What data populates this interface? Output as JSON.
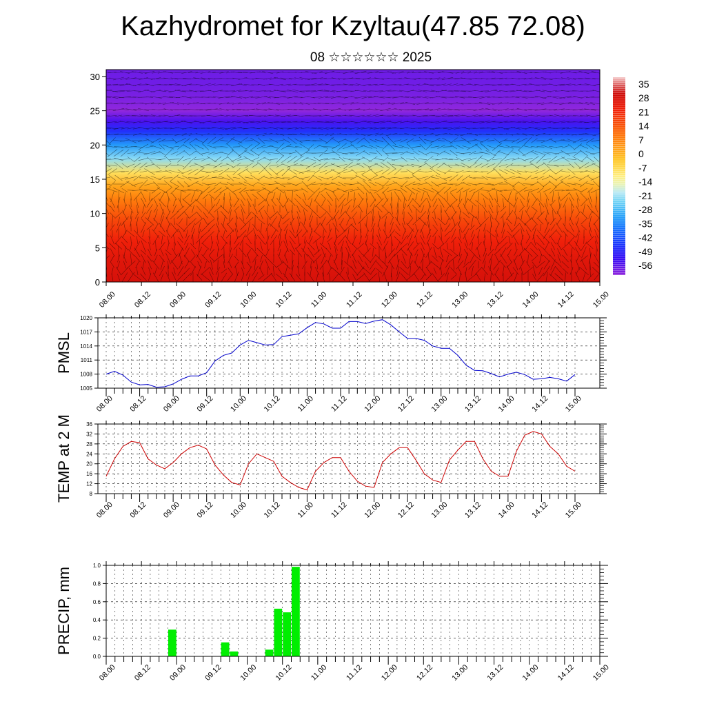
{
  "header": {
    "title": "Kazhydromet for Kzyltau(47.85 72.08)",
    "subtitle": "08 ☆☆☆☆☆☆ 2025"
  },
  "colors": {
    "pmsl_line": "#0000cc",
    "temp_line": "#cc0000",
    "precip_bar": "#00ee00",
    "grid": "#000000"
  },
  "chart_data": [
    {
      "type": "heatmap",
      "title": "",
      "x_ticks": [
        "08.00",
        "08.12",
        "09.00",
        "09.12",
        "10.00",
        "10.12",
        "11.00",
        "11.12",
        "12.00",
        "12.12",
        "13.00",
        "13.12",
        "14.00",
        "14.12",
        "15.00"
      ],
      "y_ticks": [
        "0",
        "5",
        "10",
        "15",
        "20",
        "25",
        "30"
      ],
      "ylim": [
        0,
        31
      ],
      "colorbar": {
        "labels": [
          "35",
          "28",
          "21",
          "14",
          "7",
          "0",
          "-7",
          "-14",
          "-21",
          "-28",
          "-35",
          "-42",
          "-49",
          "-56"
        ],
        "range": [
          -60,
          38
        ]
      },
      "temperature_profile": {
        "heights": [
          0,
          3,
          6,
          9,
          12,
          14,
          16,
          18,
          20,
          22,
          23.5,
          25,
          27,
          29,
          31
        ],
        "values": [
          28,
          26,
          22,
          16,
          8,
          2,
          -8,
          -22,
          -32,
          -46,
          -54,
          -60,
          -58,
          -57,
          -57
        ]
      },
      "wind_overlay": "streamlines"
    },
    {
      "type": "line",
      "ylabel": "PMSL",
      "yticks": [
        1005,
        1008,
        1011,
        1014,
        1017,
        1020
      ],
      "ylim": [
        1005,
        1020
      ],
      "x_ticks": [
        "08.00",
        "08.12",
        "09.00",
        "09.12",
        "10.00",
        "10.12",
        "11.00",
        "11.12",
        "12.00",
        "12.12",
        "13.00",
        "13.12",
        "14.00",
        "14.12",
        "15.00"
      ],
      "step_hours": 3,
      "values": [
        1008.0,
        1008.6,
        1007.8,
        1006.3,
        1005.7,
        1005.8,
        1005.2,
        1005.3,
        1005.9,
        1006.9,
        1007.6,
        1007.6,
        1008.3,
        1010.8,
        1012.0,
        1012.5,
        1014.2,
        1015.2,
        1014.7,
        1014.2,
        1014.3,
        1016.0,
        1016.3,
        1016.6,
        1017.9,
        1019.0,
        1018.7,
        1017.8,
        1017.8,
        1019.2,
        1019.2,
        1018.8,
        1019.3,
        1019.6,
        1018.5,
        1017.0,
        1015.6,
        1015.6,
        1015.2,
        1014.0,
        1013.5,
        1013.5,
        1012.0,
        1009.9,
        1008.8,
        1008.7,
        1008.1,
        1007.4,
        1008.0,
        1008.4,
        1007.9,
        1006.9,
        1007.0,
        1007.3,
        1007.0,
        1006.5,
        1007.9
      ]
    },
    {
      "type": "line",
      "ylabel": "TEMP at 2 M",
      "yticks": [
        8,
        12,
        16,
        20,
        24,
        28,
        32,
        36
      ],
      "ylim": [
        8,
        36
      ],
      "x_ticks": [
        "08.00",
        "08.12",
        "09.00",
        "09.12",
        "10.00",
        "10.12",
        "11.00",
        "11.12",
        "12.00",
        "12.12",
        "13.00",
        "13.12",
        "14.00",
        "14.12",
        "15.00"
      ],
      "step_hours": 3,
      "values": [
        15.0,
        22.0,
        27.0,
        29.0,
        28.5,
        22.0,
        19.5,
        18.0,
        20.5,
        24.0,
        26.5,
        27.5,
        26.0,
        19.5,
        15.5,
        12.5,
        11.5,
        20.0,
        24.0,
        22.5,
        21.0,
        15.0,
        12.5,
        10.5,
        9.5,
        17.0,
        20.5,
        22.5,
        22.5,
        17.0,
        13.0,
        11.0,
        10.5,
        20.5,
        24.0,
        26.5,
        26.5,
        21.5,
        16.0,
        13.5,
        12.5,
        21.5,
        25.5,
        29.0,
        29.0,
        22.0,
        17.0,
        15.0,
        15.0,
        25.0,
        31.5,
        33.0,
        32.0,
        27.0,
        24.0,
        19.0,
        17.0
      ]
    },
    {
      "type": "bar",
      "ylabel": "PRECIP, mm",
      "yticks": [
        "0.0",
        "0.2",
        "0.4",
        "0.6",
        "0.8",
        "1.0"
      ],
      "ylim": [
        0,
        1.0
      ],
      "x_ticks": [
        "08.00",
        "08.12",
        "09.00",
        "09.12",
        "10.00",
        "10.12",
        "11.00",
        "11.12",
        "12.00",
        "12.12",
        "13.00",
        "13.12",
        "14.00",
        "14.12",
        "15.00"
      ],
      "step_hours": 3,
      "values": [
        0,
        0,
        0,
        0,
        0,
        0,
        0,
        0.29,
        0,
        0,
        0,
        0,
        0,
        0.15,
        0.05,
        0,
        0,
        0,
        0.07,
        0.52,
        0.48,
        0.98,
        0,
        0,
        0,
        0,
        0,
        0,
        0,
        0,
        0,
        0,
        0,
        0,
        0,
        0,
        0,
        0,
        0,
        0,
        0,
        0,
        0,
        0,
        0,
        0,
        0,
        0,
        0,
        0,
        0,
        0,
        0,
        0,
        0,
        0
      ]
    }
  ]
}
